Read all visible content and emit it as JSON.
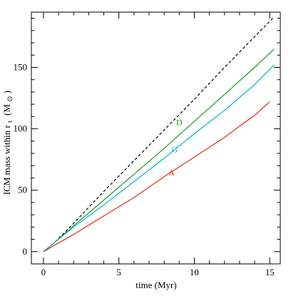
{
  "chart_data": {
    "type": "line",
    "title": "",
    "xlabel": "time (Myr)",
    "ylabel": "ICM mass within r",
    "ylabel_sub": "t",
    "ylabel_units_open": "(M",
    "ylabel_units_sub": "⊙",
    "ylabel_units_close": ")",
    "xlim": [
      -0.8,
      15.7
    ],
    "ylim": [
      -10,
      195
    ],
    "xticks_major": [
      0,
      5,
      10,
      15
    ],
    "yticks_major": [
      0,
      50,
      100,
      150
    ],
    "xticks_minor_step": 1,
    "yticks_minor_step": 10,
    "grid": false,
    "series": [
      {
        "name": "",
        "label": "",
        "color": "#000000",
        "dash": "dashed",
        "x": [
          0,
          0.7,
          2,
          4,
          6,
          8,
          10,
          12,
          14,
          15.2
        ],
        "y": [
          0,
          7,
          23,
          49,
          74,
          99,
          124,
          150,
          175,
          190
        ]
      },
      {
        "name": "D",
        "label": "D",
        "color": "#1a9a1a",
        "dash": "solid",
        "label_x": 9.0,
        "label_y": 103,
        "x": [
          0,
          0.7,
          2,
          4,
          6,
          8,
          10,
          12,
          14,
          15.3
        ],
        "y": [
          0,
          7,
          21,
          42,
          63,
          84,
          106,
          128,
          150,
          165
        ]
      },
      {
        "name": "G",
        "label": "G",
        "color": "#00b4c8",
        "dash": "solid",
        "label_x": 8.7,
        "label_y": 81,
        "x": [
          0,
          0.7,
          2,
          4,
          6,
          8,
          10,
          12,
          14,
          15.3
        ],
        "y": [
          0,
          7,
          20,
          38,
          57,
          76,
          96,
          115,
          136,
          152
        ]
      },
      {
        "name": "A",
        "label": "A",
        "color": "#e03010",
        "dash": "solid",
        "label_x": 8.5,
        "label_y": 62,
        "x": [
          0,
          0.7,
          2,
          4,
          6,
          8,
          10,
          12,
          14,
          15.0
        ],
        "y": [
          0,
          5,
          14,
          29,
          44,
          61,
          77,
          93,
          111,
          122
        ]
      }
    ]
  }
}
